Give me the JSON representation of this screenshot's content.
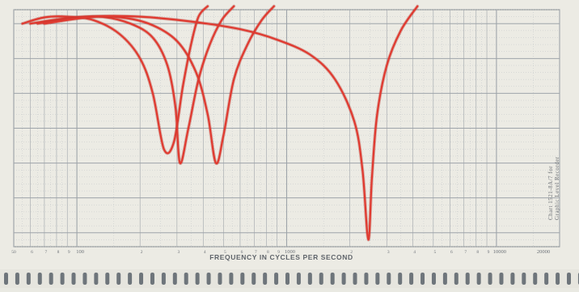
{
  "chart_data": {
    "type": "line",
    "title": "",
    "xlabel": "FREQUENCY IN CYCLES PER SECOND",
    "ylabel": "",
    "xscale": "log",
    "xlim": [
      50,
      20000
    ],
    "ylim": [
      -32,
      2
    ],
    "grid": true,
    "legend": "none",
    "x_tick_labels": [
      {
        "value": 50,
        "label": "50"
      },
      {
        "value": 60,
        "label": "6"
      },
      {
        "value": 70,
        "label": "7"
      },
      {
        "value": 80,
        "label": "8"
      },
      {
        "value": 90,
        "label": "9"
      },
      {
        "value": 100,
        "label": "100"
      },
      {
        "value": 200,
        "label": "2"
      },
      {
        "value": 300,
        "label": "3"
      },
      {
        "value": 400,
        "label": "4"
      },
      {
        "value": 500,
        "label": "5"
      },
      {
        "value": 600,
        "label": "6"
      },
      {
        "value": 700,
        "label": "7"
      },
      {
        "value": 800,
        "label": "8"
      },
      {
        "value": 900,
        "label": "9"
      },
      {
        "value": 1000,
        "label": "1000"
      },
      {
        "value": 2000,
        "label": "2"
      },
      {
        "value": 3000,
        "label": "3"
      },
      {
        "value": 4000,
        "label": "4"
      },
      {
        "value": 5000,
        "label": "5"
      },
      {
        "value": 6000,
        "label": "6"
      },
      {
        "value": 7000,
        "label": "7"
      },
      {
        "value": 8000,
        "label": "8"
      },
      {
        "value": 9000,
        "label": "9"
      },
      {
        "value": 10000,
        "label": "10000"
      },
      {
        "value": 20000,
        "label": "20000"
      }
    ],
    "series": [
      {
        "color": "#e03a30",
        "x": [
          55,
          70,
          90,
          120,
          160,
          200,
          230,
          260,
          290,
          320,
          350,
          380,
          420
        ],
        "y": [
          0,
          0.9,
          1,
          0.5,
          -1.5,
          -5,
          -10,
          -18,
          -17,
          -9,
          -3,
          1,
          2.5
        ]
      },
      {
        "color": "#e03a30",
        "x": [
          60,
          90,
          130,
          180,
          230,
          270,
          295,
          310,
          340,
          380,
          430,
          490,
          560
        ],
        "y": [
          0,
          0.8,
          1,
          0,
          -2,
          -6,
          -12,
          -20,
          -15,
          -8,
          -3,
          0.5,
          2.5
        ]
      },
      {
        "color": "#e03a30",
        "x": [
          65,
          100,
          150,
          220,
          300,
          370,
          420,
          460,
          500,
          560,
          650,
          760,
          870
        ],
        "y": [
          0,
          0.8,
          1,
          0,
          -2.5,
          -7,
          -13,
          -20,
          -16,
          -8,
          -3,
          0.5,
          2.5
        ]
      },
      {
        "color": "#e03a30",
        "x": [
          70,
          120,
          200,
          350,
          600,
          900,
          1300,
          1700,
          2100,
          2300,
          2450,
          2550,
          2700,
          3000,
          3500,
          4200
        ],
        "y": [
          0,
          1,
          1,
          0.3,
          -0.8,
          -2.3,
          -4.5,
          -8,
          -14,
          -21,
          -31,
          -22,
          -13,
          -6,
          -1,
          2.5
        ]
      }
    ]
  },
  "side_label": {
    "line1": "Chart 1521-8A/7 for",
    "line2": "Graphic Level Recorder"
  },
  "paper_color": "#ecebe4",
  "grid_color": "#9ea4aa"
}
